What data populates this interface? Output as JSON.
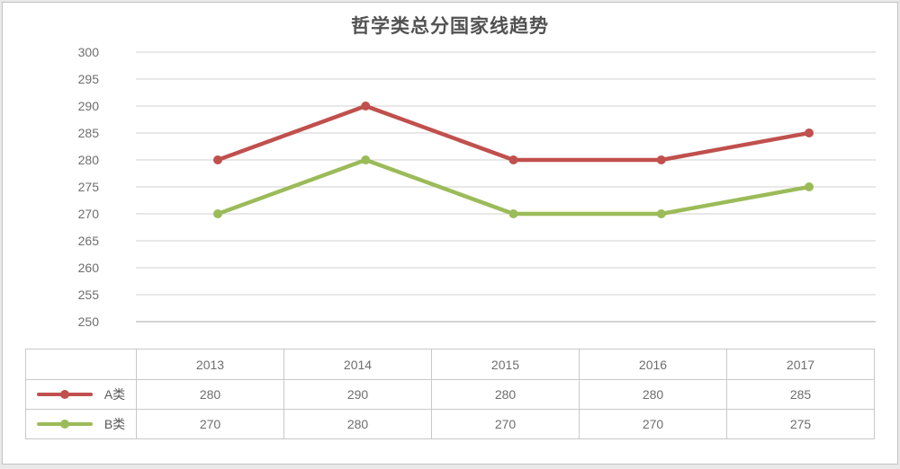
{
  "title": "哲学类总分国家线趋势",
  "chart_data": {
    "type": "line",
    "title": "哲学类总分国家线趋势",
    "categories": [
      "2013",
      "2014",
      "2015",
      "2016",
      "2017"
    ],
    "series": [
      {
        "name": "A类",
        "color": "#c0504d",
        "values": [
          280,
          290,
          280,
          280,
          285
        ]
      },
      {
        "name": "B类",
        "color": "#9bbb59",
        "values": [
          270,
          280,
          270,
          270,
          275
        ]
      }
    ],
    "ylim": [
      250,
      300
    ],
    "ytick_step": 5,
    "yticks": [
      "300",
      "295",
      "290",
      "285",
      "280",
      "275",
      "270",
      "265",
      "260",
      "255",
      "250"
    ],
    "grid": true,
    "legend_position": "table-left",
    "grid_color": "#d0d0d0",
    "axis_line_color": "#a8a8a8"
  }
}
